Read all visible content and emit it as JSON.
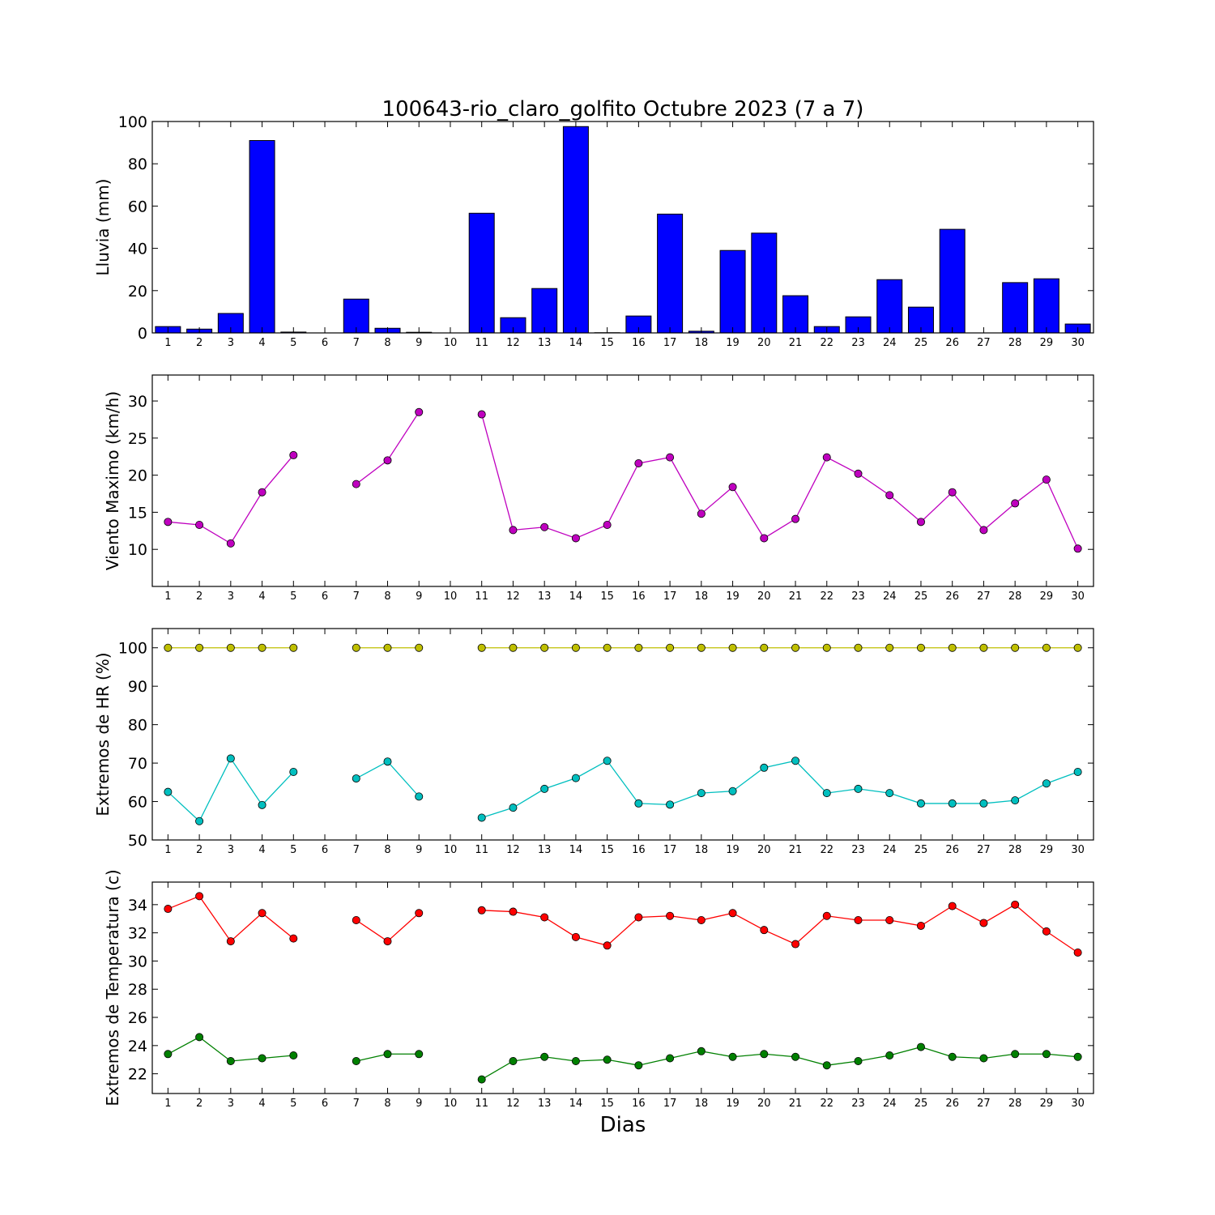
{
  "figure": {
    "title": "100643-rio_claro_golfito Octubre 2023  (7 a 7)",
    "xlabel": "Dias"
  },
  "chart_data": [
    {
      "type": "bar",
      "ylabel": "Lluvia (mm)",
      "ylim": [
        0,
        100
      ],
      "yticks": [
        0,
        20,
        40,
        60,
        80,
        100
      ],
      "xlim": [
        0.5,
        30.5
      ],
      "xticks": [
        1,
        2,
        3,
        4,
        5,
        6,
        7,
        8,
        9,
        10,
        11,
        12,
        13,
        14,
        15,
        16,
        17,
        18,
        19,
        20,
        21,
        22,
        23,
        24,
        25,
        26,
        27,
        28,
        29,
        30
      ],
      "grid": false,
      "series": [
        {
          "color": "#0000ff",
          "x": [
            1,
            2,
            3,
            4,
            5,
            6,
            7,
            8,
            9,
            10,
            11,
            12,
            13,
            14,
            15,
            16,
            17,
            18,
            19,
            20,
            21,
            22,
            23,
            24,
            25,
            26,
            27,
            28,
            29,
            30
          ],
          "values": [
            3.0,
            1.8,
            9.2,
            91.0,
            0.4,
            0.0,
            16.0,
            2.2,
            0.3,
            0.0,
            56.6,
            7.2,
            21.0,
            97.6,
            0.1,
            8.0,
            56.2,
            0.8,
            39.0,
            47.2,
            17.6,
            3.0,
            7.6,
            25.2,
            12.2,
            49.0,
            0.0,
            23.8,
            25.6,
            4.2
          ]
        }
      ]
    },
    {
      "type": "line",
      "ylabel": "Viento Maximo (km/h)",
      "ylim": [
        5,
        33.5
      ],
      "yticks": [
        10,
        15,
        20,
        25,
        30
      ],
      "xlim": [
        0.5,
        30.5
      ],
      "xticks": [
        1,
        2,
        3,
        4,
        5,
        6,
        7,
        8,
        9,
        10,
        11,
        12,
        13,
        14,
        15,
        16,
        17,
        18,
        19,
        20,
        21,
        22,
        23,
        24,
        25,
        26,
        27,
        28,
        29,
        30
      ],
      "grid": false,
      "series": [
        {
          "color": "#bf00bf",
          "x": [
            1,
            2,
            3,
            4,
            5,
            6,
            7,
            8,
            9,
            10,
            11,
            12,
            13,
            14,
            15,
            16,
            17,
            18,
            19,
            20,
            21,
            22,
            23,
            24,
            25,
            26,
            27,
            28,
            29,
            30
          ],
          "values": [
            13.7,
            13.3,
            10.8,
            17.7,
            22.7,
            null,
            18.8,
            22.0,
            28.5,
            null,
            28.2,
            12.6,
            13.0,
            11.5,
            13.3,
            21.6,
            22.4,
            14.8,
            18.4,
            11.5,
            14.1,
            22.4,
            20.2,
            17.3,
            13.7,
            17.7,
            12.6,
            16.2,
            19.4,
            10.1
          ]
        }
      ]
    },
    {
      "type": "line",
      "ylabel": "Extremos de HR (%)",
      "ylim": [
        50,
        105
      ],
      "yticks": [
        50,
        60,
        70,
        80,
        90,
        100
      ],
      "xlim": [
        0.5,
        30.5
      ],
      "xticks": [
        1,
        2,
        3,
        4,
        5,
        6,
        7,
        8,
        9,
        10,
        11,
        12,
        13,
        14,
        15,
        16,
        17,
        18,
        19,
        20,
        21,
        22,
        23,
        24,
        25,
        26,
        27,
        28,
        29,
        30
      ],
      "grid": false,
      "series": [
        {
          "color": "#bfbf00",
          "x": [
            1,
            2,
            3,
            4,
            5,
            6,
            7,
            8,
            9,
            10,
            11,
            12,
            13,
            14,
            15,
            16,
            17,
            18,
            19,
            20,
            21,
            22,
            23,
            24,
            25,
            26,
            27,
            28,
            29,
            30
          ],
          "values": [
            100,
            100,
            100,
            100,
            100,
            null,
            100,
            100,
            100,
            null,
            100,
            100,
            100,
            100,
            100,
            100,
            100,
            100,
            100,
            100,
            100,
            100,
            100,
            100,
            100,
            100,
            100,
            100,
            100,
            100
          ]
        },
        {
          "color": "#00bfbf",
          "x": [
            1,
            2,
            3,
            4,
            5,
            6,
            7,
            8,
            9,
            10,
            11,
            12,
            13,
            14,
            15,
            16,
            17,
            18,
            19,
            20,
            21,
            22,
            23,
            24,
            25,
            26,
            27,
            28,
            29,
            30
          ],
          "values": [
            62.5,
            54.9,
            71.2,
            59.1,
            67.7,
            null,
            66.0,
            70.4,
            61.3,
            null,
            55.8,
            58.4,
            63.3,
            66.1,
            70.6,
            59.5,
            59.2,
            62.2,
            62.7,
            68.8,
            70.6,
            62.2,
            63.3,
            62.2,
            59.5,
            59.5,
            59.5,
            60.3,
            64.7,
            67.7
          ]
        }
      ]
    },
    {
      "type": "line",
      "ylabel": "Extremos de Temperatura (c)",
      "ylim": [
        20.6,
        35.6
      ],
      "yticks": [
        22,
        24,
        26,
        28,
        30,
        32,
        34
      ],
      "xlim": [
        0.5,
        30.5
      ],
      "xticks": [
        1,
        2,
        3,
        4,
        5,
        6,
        7,
        8,
        9,
        10,
        11,
        12,
        13,
        14,
        15,
        16,
        17,
        18,
        19,
        20,
        21,
        22,
        23,
        24,
        25,
        26,
        27,
        28,
        29,
        30
      ],
      "grid": false,
      "series": [
        {
          "color": "#ff0000",
          "x": [
            1,
            2,
            3,
            4,
            5,
            6,
            7,
            8,
            9,
            10,
            11,
            12,
            13,
            14,
            15,
            16,
            17,
            18,
            19,
            20,
            21,
            22,
            23,
            24,
            25,
            26,
            27,
            28,
            29,
            30
          ],
          "values": [
            33.7,
            34.6,
            31.4,
            33.4,
            31.6,
            null,
            32.9,
            31.4,
            33.4,
            null,
            33.6,
            33.5,
            33.1,
            31.7,
            31.1,
            33.1,
            33.2,
            32.9,
            33.4,
            32.2,
            31.2,
            33.2,
            32.9,
            32.9,
            32.5,
            33.9,
            32.7,
            34.0,
            32.1,
            30.6
          ]
        },
        {
          "color": "#008000",
          "x": [
            1,
            2,
            3,
            4,
            5,
            6,
            7,
            8,
            9,
            10,
            11,
            12,
            13,
            14,
            15,
            16,
            17,
            18,
            19,
            20,
            21,
            22,
            23,
            24,
            25,
            26,
            27,
            28,
            29,
            30
          ],
          "values": [
            23.4,
            24.6,
            22.9,
            23.1,
            23.3,
            null,
            22.9,
            23.4,
            23.4,
            null,
            21.6,
            22.9,
            23.2,
            22.9,
            23.0,
            22.6,
            23.1,
            23.6,
            23.2,
            23.4,
            23.2,
            22.6,
            22.9,
            23.3,
            23.9,
            23.2,
            23.1,
            23.4,
            23.4,
            23.2
          ]
        }
      ]
    }
  ]
}
